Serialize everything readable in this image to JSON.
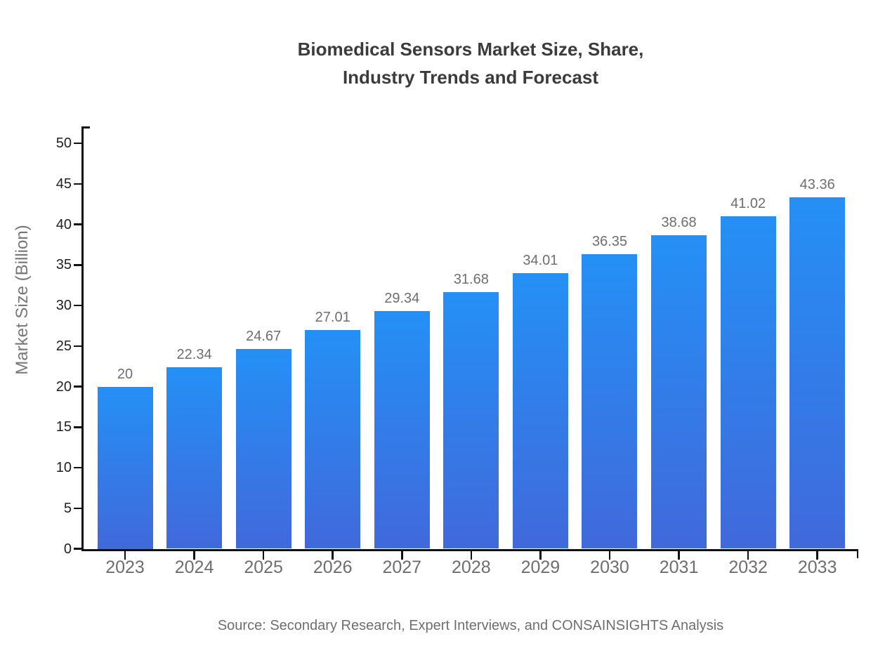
{
  "figure": {
    "title_line1": "Biomedical Sensors Market Size, Share,",
    "title_line2": "Industry Trends and Forecast"
  },
  "chart_data": {
    "type": "bar",
    "title": "Biomedical Sensors Market Size, Share, Industry Trends and Forecast",
    "title_lines": [
      "Biomedical Sensors Market Size, Share,",
      "Industry Trends and Forecast"
    ],
    "categories": [
      "2023",
      "2024",
      "2025",
      "2026",
      "2027",
      "2028",
      "2029",
      "2030",
      "2031",
      "2032",
      "2033"
    ],
    "values": [
      20,
      22.34,
      24.67,
      27.01,
      29.34,
      31.68,
      34.01,
      36.35,
      38.68,
      41.02,
      43.36
    ],
    "value_labels": [
      "20",
      "22.34",
      "24.67",
      "27.01",
      "29.34",
      "31.68",
      "34.01",
      "36.35",
      "38.68",
      "41.02",
      "43.36"
    ],
    "xlabel": "",
    "ylabel": "Market Size (Billion)",
    "ylim": [
      0,
      50
    ],
    "ytick_step": 5,
    "yticks": [
      0,
      5,
      10,
      15,
      20,
      25,
      30,
      35,
      40,
      45,
      50
    ],
    "grid": false,
    "legend_position": "none",
    "source": "Source: Secondary Research, Expert Interviews, and CONSAINSIGHTS Analysis",
    "colors": {
      "bar_gradient_top": "#2490f6",
      "bar_gradient_bottom": "#4169db",
      "axis": "#111111",
      "title_text": "#3b3b3b",
      "ytick_text": "#1f1f1f",
      "xtick_text": "#6e6e6e",
      "value_label_text": "#6e6e6e",
      "ylabel_text": "#777777",
      "source_text": "#6e6e6e",
      "background": "#ffffff"
    }
  }
}
